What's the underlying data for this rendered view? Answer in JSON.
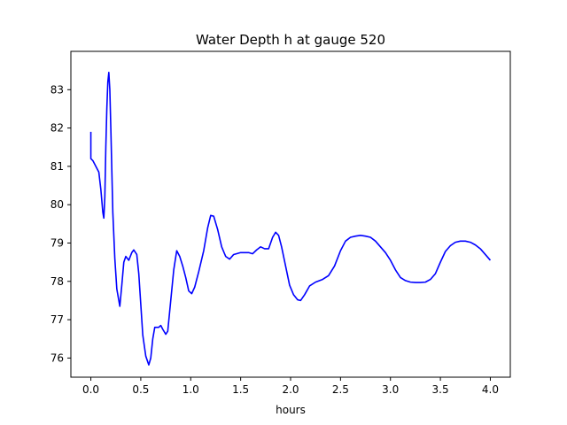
{
  "chart_data": {
    "type": "line",
    "title": "Water Depth h at gauge 520",
    "xlabel": "hours",
    "ylabel": "",
    "xlim": [
      -0.2,
      4.2
    ],
    "ylim": [
      75.5,
      84.0
    ],
    "xticks": [
      0.0,
      0.5,
      1.0,
      1.5,
      2.0,
      2.5,
      3.0,
      3.5,
      4.0
    ],
    "xtick_labels": [
      "0.0",
      "0.5",
      "1.0",
      "1.5",
      "2.0",
      "2.5",
      "3.0",
      "3.5",
      "4.0"
    ],
    "yticks": [
      76,
      77,
      78,
      79,
      80,
      81,
      82,
      83
    ],
    "ytick_labels": [
      "76",
      "77",
      "78",
      "79",
      "80",
      "81",
      "82",
      "83"
    ],
    "grid": false,
    "legend": null,
    "series": [
      {
        "color": "#0000ff",
        "points": [
          [
            0.0,
            81.9
          ],
          [
            0.0,
            81.2
          ],
          [
            0.02,
            81.15
          ],
          [
            0.05,
            81.0
          ],
          [
            0.08,
            80.85
          ],
          [
            0.1,
            80.4
          ],
          [
            0.12,
            79.8
          ],
          [
            0.13,
            79.65
          ],
          [
            0.14,
            80.2
          ],
          [
            0.15,
            81.5
          ],
          [
            0.16,
            82.5
          ],
          [
            0.17,
            83.2
          ],
          [
            0.18,
            83.45
          ],
          [
            0.19,
            83.0
          ],
          [
            0.2,
            82.0
          ],
          [
            0.22,
            79.8
          ],
          [
            0.24,
            78.6
          ],
          [
            0.26,
            77.8
          ],
          [
            0.29,
            77.35
          ],
          [
            0.31,
            77.9
          ],
          [
            0.33,
            78.5
          ],
          [
            0.35,
            78.65
          ],
          [
            0.38,
            78.55
          ],
          [
            0.41,
            78.75
          ],
          [
            0.43,
            78.82
          ],
          [
            0.46,
            78.7
          ],
          [
            0.48,
            78.2
          ],
          [
            0.5,
            77.4
          ],
          [
            0.52,
            76.6
          ],
          [
            0.55,
            76.05
          ],
          [
            0.58,
            75.82
          ],
          [
            0.6,
            76.0
          ],
          [
            0.62,
            76.5
          ],
          [
            0.64,
            76.8
          ],
          [
            0.68,
            76.8
          ],
          [
            0.7,
            76.85
          ],
          [
            0.72,
            76.75
          ],
          [
            0.75,
            76.62
          ],
          [
            0.77,
            76.7
          ],
          [
            0.8,
            77.5
          ],
          [
            0.83,
            78.3
          ],
          [
            0.86,
            78.8
          ],
          [
            0.89,
            78.65
          ],
          [
            0.92,
            78.4
          ],
          [
            0.95,
            78.1
          ],
          [
            0.98,
            77.75
          ],
          [
            1.01,
            77.68
          ],
          [
            1.04,
            77.85
          ],
          [
            1.08,
            78.25
          ],
          [
            1.13,
            78.8
          ],
          [
            1.17,
            79.4
          ],
          [
            1.2,
            79.72
          ],
          [
            1.23,
            79.7
          ],
          [
            1.27,
            79.35
          ],
          [
            1.31,
            78.9
          ],
          [
            1.35,
            78.65
          ],
          [
            1.39,
            78.58
          ],
          [
            1.43,
            78.7
          ],
          [
            1.5,
            78.75
          ],
          [
            1.58,
            78.75
          ],
          [
            1.62,
            78.72
          ],
          [
            1.66,
            78.82
          ],
          [
            1.7,
            78.9
          ],
          [
            1.74,
            78.85
          ],
          [
            1.78,
            78.85
          ],
          [
            1.82,
            79.15
          ],
          [
            1.85,
            79.28
          ],
          [
            1.88,
            79.2
          ],
          [
            1.91,
            78.9
          ],
          [
            1.95,
            78.4
          ],
          [
            1.99,
            77.9
          ],
          [
            2.03,
            77.65
          ],
          [
            2.07,
            77.52
          ],
          [
            2.1,
            77.5
          ],
          [
            2.14,
            77.65
          ],
          [
            2.19,
            77.88
          ],
          [
            2.25,
            77.98
          ],
          [
            2.32,
            78.05
          ],
          [
            2.38,
            78.15
          ],
          [
            2.44,
            78.4
          ],
          [
            2.5,
            78.8
          ],
          [
            2.55,
            79.05
          ],
          [
            2.6,
            79.15
          ],
          [
            2.65,
            79.18
          ],
          [
            2.7,
            79.2
          ],
          [
            2.75,
            79.18
          ],
          [
            2.8,
            79.15
          ],
          [
            2.85,
            79.05
          ],
          [
            2.9,
            78.9
          ],
          [
            2.95,
            78.75
          ],
          [
            3.0,
            78.55
          ],
          [
            3.05,
            78.3
          ],
          [
            3.1,
            78.1
          ],
          [
            3.15,
            78.02
          ],
          [
            3.2,
            77.98
          ],
          [
            3.25,
            77.97
          ],
          [
            3.3,
            77.97
          ],
          [
            3.35,
            77.98
          ],
          [
            3.4,
            78.05
          ],
          [
            3.45,
            78.2
          ],
          [
            3.5,
            78.5
          ],
          [
            3.55,
            78.78
          ],
          [
            3.6,
            78.93
          ],
          [
            3.65,
            79.02
          ],
          [
            3.7,
            79.05
          ],
          [
            3.75,
            79.05
          ],
          [
            3.8,
            79.02
          ],
          [
            3.85,
            78.95
          ],
          [
            3.9,
            78.85
          ],
          [
            3.95,
            78.7
          ],
          [
            4.0,
            78.55
          ]
        ]
      }
    ]
  }
}
